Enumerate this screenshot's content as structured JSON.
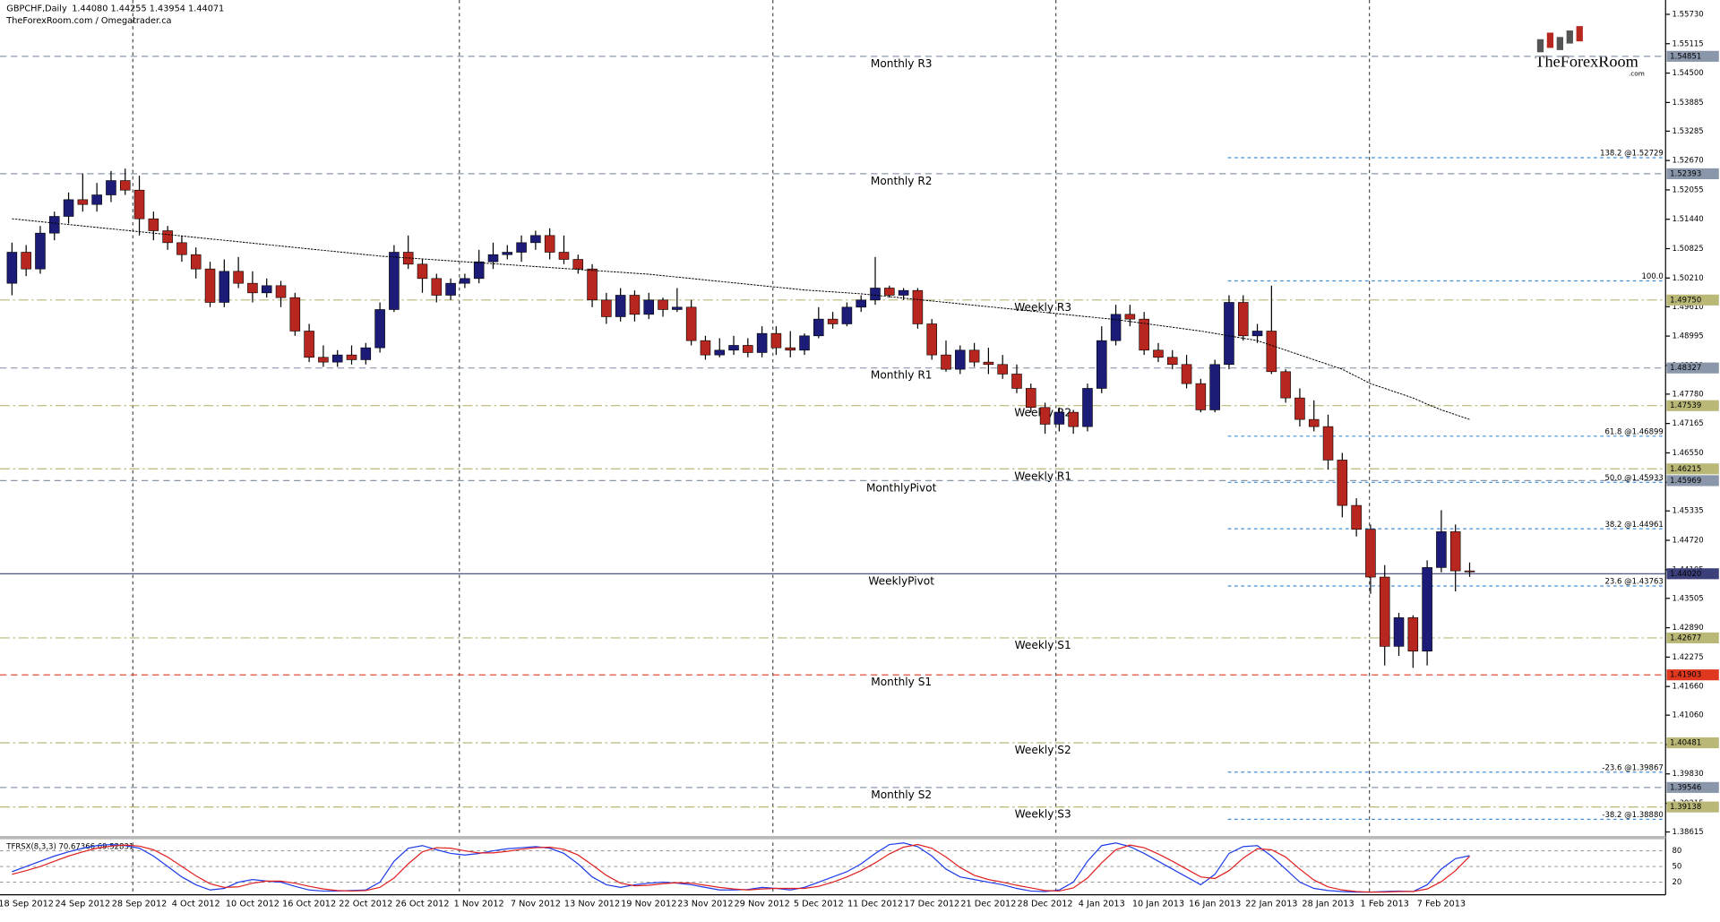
{
  "chart_data": {
    "type": "candlestick",
    "title": "GBPCHF,Daily",
    "subtitle": "1.44080 1.44255 1.43954 1.44071",
    "credit": "TheForexRoom.com / Omegatrader.ca",
    "logo": {
      "name": "TheForexRoom",
      "sub": ".com"
    },
    "up_color": "#1c1c78",
    "down_color": "#b8271f",
    "categories": [
      null,
      "18 Sep 2012",
      null,
      null,
      null,
      "24 Sep 2012",
      null,
      null,
      null,
      "28 Sep 2012",
      null,
      null,
      null,
      "4 Oct 2012",
      null,
      null,
      null,
      "10 Oct 2012",
      null,
      null,
      null,
      "16 Oct 2012",
      null,
      null,
      null,
      "22 Oct 2012",
      null,
      null,
      null,
      "26 Oct 2012",
      null,
      null,
      null,
      "1 Nov 2012",
      null,
      null,
      null,
      "7 Nov 2012",
      null,
      null,
      null,
      "13 Nov 2012",
      null,
      null,
      null,
      "19 Nov 2012",
      null,
      null,
      null,
      "23 Nov 2012",
      null,
      null,
      null,
      "29 Nov 2012",
      null,
      null,
      null,
      "5 Dec 2012",
      null,
      null,
      null,
      "11 Dec 2012",
      null,
      null,
      null,
      "17 Dec 2012",
      null,
      null,
      null,
      "21 Dec 2012",
      null,
      null,
      null,
      "28 Dec 2012",
      null,
      null,
      null,
      "4 Jan 2013",
      null,
      null,
      null,
      "10 Jan 2013",
      null,
      null,
      null,
      "16 Jan 2013",
      null,
      null,
      null,
      "22 Jan 2013",
      null,
      null,
      null,
      "28 Jan 2013",
      null,
      null,
      null,
      "1 Feb 2013",
      null,
      null,
      null,
      "7 Feb 2013",
      null,
      null
    ],
    "open": [
      1.501,
      1.5075,
      1.504,
      1.5115,
      1.515,
      1.5185,
      1.5175,
      1.5195,
      1.5225,
      1.5205,
      1.5145,
      1.512,
      1.5095,
      1.507,
      1.504,
      1.497,
      1.5035,
      1.501,
      1.499,
      1.5005,
      1.498,
      1.491,
      1.4855,
      1.4845,
      1.486,
      1.485,
      1.4875,
      1.4955,
      1.5075,
      1.505,
      1.502,
      1.4985,
      1.501,
      1.502,
      1.5055,
      1.507,
      1.5075,
      1.5095,
      1.511,
      1.5075,
      1.506,
      1.504,
      1.4975,
      1.494,
      1.4985,
      1.4945,
      1.4975,
      1.4955,
      1.496,
      1.489,
      1.486,
      1.487,
      1.488,
      1.4865,
      1.4905,
      1.4875,
      1.487,
      1.49,
      1.4935,
      1.4925,
      1.496,
      1.4975,
      1.5,
      1.4985,
      1.4995,
      1.4925,
      1.486,
      1.483,
      1.487,
      1.4845,
      1.484,
      1.482,
      1.479,
      1.475,
      1.4715,
      1.474,
      1.471,
      1.479,
      1.489,
      1.4945,
      1.4935,
      1.487,
      1.4855,
      1.484,
      1.48,
      1.4745,
      1.484,
      1.497,
      1.49,
      1.491,
      1.4825,
      1.477,
      1.4725,
      1.471,
      1.464,
      1.4545,
      1.4495,
      1.4395,
      1.425,
      1.431,
      1.424,
      1.4415,
      1.449,
      1.4408
    ],
    "high": [
      1.5095,
      1.509,
      1.513,
      1.516,
      1.52,
      1.524,
      1.522,
      1.5245,
      1.525,
      1.5235,
      1.516,
      1.513,
      1.511,
      1.5085,
      1.5055,
      1.506,
      1.5065,
      1.5035,
      1.502,
      1.5015,
      1.499,
      1.4925,
      1.488,
      1.487,
      1.488,
      1.4885,
      1.497,
      1.509,
      1.511,
      1.506,
      1.503,
      1.502,
      1.503,
      1.508,
      1.5095,
      1.509,
      1.511,
      1.512,
      1.5125,
      1.511,
      1.507,
      1.505,
      1.499,
      1.5,
      1.4995,
      1.499,
      1.498,
      1.5,
      1.4975,
      1.49,
      1.4895,
      1.49,
      1.4895,
      1.492,
      1.492,
      1.491,
      1.4905,
      1.496,
      1.495,
      1.497,
      1.4985,
      1.5065,
      1.5005,
      1.5,
      1.5,
      1.4935,
      1.489,
      1.488,
      1.4885,
      1.4875,
      1.486,
      1.484,
      1.48,
      1.476,
      1.475,
      1.4745,
      1.48,
      1.492,
      1.4965,
      1.4965,
      1.495,
      1.4885,
      1.487,
      1.486,
      1.481,
      1.485,
      1.4985,
      1.4985,
      1.4925,
      1.5005,
      1.483,
      1.479,
      1.4765,
      1.4735,
      1.4655,
      1.456,
      1.4505,
      1.442,
      1.432,
      1.4315,
      1.443,
      1.4535,
      1.4505,
      1.44255
    ],
    "low": [
      1.4985,
      1.5025,
      1.503,
      1.51,
      1.5135,
      1.516,
      1.516,
      1.518,
      1.5195,
      1.511,
      1.51,
      1.508,
      1.5055,
      1.502,
      1.496,
      1.496,
      1.5,
      1.497,
      1.498,
      1.496,
      1.49,
      1.4845,
      1.4835,
      1.4835,
      1.484,
      1.484,
      1.4865,
      1.495,
      1.504,
      1.499,
      1.497,
      1.4975,
      1.5,
      1.501,
      1.504,
      1.506,
      1.5055,
      1.508,
      1.506,
      1.505,
      1.503,
      1.496,
      1.4925,
      1.493,
      1.493,
      1.4935,
      1.494,
      1.495,
      1.488,
      1.485,
      1.4855,
      1.486,
      1.4855,
      1.4855,
      1.486,
      1.4855,
      1.486,
      1.4895,
      1.4915,
      1.492,
      1.495,
      1.4965,
      1.498,
      1.4975,
      1.4915,
      1.485,
      1.4825,
      1.482,
      1.4835,
      1.482,
      1.481,
      1.478,
      1.474,
      1.4695,
      1.47,
      1.4695,
      1.47,
      1.478,
      1.488,
      1.492,
      1.486,
      1.4845,
      1.483,
      1.479,
      1.474,
      1.474,
      1.483,
      1.489,
      1.4885,
      1.482,
      1.476,
      1.471,
      1.47,
      1.462,
      1.452,
      1.448,
      1.436,
      1.421,
      1.423,
      1.4205,
      1.421,
      1.4405,
      1.4365,
      1.43954
    ],
    "close": [
      1.5075,
      1.504,
      1.5115,
      1.515,
      1.5185,
      1.5175,
      1.5195,
      1.5225,
      1.5205,
      1.5145,
      1.512,
      1.5095,
      1.507,
      1.504,
      1.497,
      1.5035,
      1.501,
      1.499,
      1.5005,
      1.498,
      1.491,
      1.4855,
      1.4845,
      1.486,
      1.485,
      1.4875,
      1.4955,
      1.5075,
      1.505,
      1.502,
      1.4985,
      1.501,
      1.502,
      1.5055,
      1.507,
      1.5075,
      1.5095,
      1.511,
      1.5075,
      1.506,
      1.504,
      1.4975,
      1.494,
      1.4985,
      1.4945,
      1.4975,
      1.4955,
      1.496,
      1.489,
      1.486,
      1.487,
      1.488,
      1.4865,
      1.4905,
      1.4875,
      1.487,
      1.49,
      1.4935,
      1.4925,
      1.496,
      1.4975,
      1.5,
      1.4985,
      1.4995,
      1.4925,
      1.486,
      1.483,
      1.487,
      1.4845,
      1.484,
      1.482,
      1.479,
      1.475,
      1.4715,
      1.474,
      1.471,
      1.479,
      1.489,
      1.4945,
      1.4935,
      1.487,
      1.4855,
      1.484,
      1.48,
      1.4745,
      1.484,
      1.497,
      1.49,
      1.491,
      1.4825,
      1.477,
      1.4725,
      1.471,
      1.464,
      1.4545,
      1.4495,
      1.4395,
      1.425,
      1.431,
      1.424,
      1.4415,
      1.449,
      1.4408,
      1.44071
    ],
    "ma": {
      "color": "#000000",
      "values": [
        1.5145,
        1.5142,
        1.5139,
        1.5136,
        1.5133,
        1.513,
        1.5127,
        1.5124,
        1.5121,
        1.5118,
        1.5115,
        1.5112,
        1.5109,
        1.5106,
        1.5103,
        1.51,
        1.5097,
        1.5094,
        1.5091,
        1.5088,
        1.5085,
        1.5082,
        1.5079,
        1.5076,
        1.5073,
        1.507,
        1.5067,
        1.5065,
        1.5063,
        1.5061,
        1.5059,
        1.5057,
        1.5055,
        1.5053,
        1.5051,
        1.5049,
        1.5047,
        1.5045,
        1.5043,
        1.5041,
        1.5039,
        1.5037,
        1.5035,
        1.5033,
        1.5031,
        1.5029,
        1.5026,
        1.5023,
        1.502,
        1.5017,
        1.5014,
        1.5011,
        1.5008,
        1.5005,
        1.5002,
        1.4999,
        1.4996,
        1.4994,
        1.4992,
        1.499,
        1.4988,
        1.4985,
        1.4982,
        1.4979,
        1.4976,
        1.4973,
        1.497,
        1.4967,
        1.4964,
        1.4961,
        1.4958,
        1.4955,
        1.4952,
        1.4949,
        1.4946,
        1.4943,
        1.494,
        1.4937,
        1.4934,
        1.493,
        1.4926,
        1.4922,
        1.4918,
        1.4914,
        1.491,
        1.4905,
        1.49,
        1.4895,
        1.489,
        1.488,
        1.487,
        1.486,
        1.485,
        1.484,
        1.483,
        1.4815,
        1.48,
        1.479,
        1.478,
        1.477,
        1.4757,
        1.4745,
        1.4735,
        1.4725
      ]
    },
    "ylim": [
      1.3853,
      1.5603
    ],
    "yticks": [
      {
        "value": 1.5573,
        "label": "1.55730"
      },
      {
        "value": 1.55115,
        "label": "1.55115"
      },
      {
        "value": 1.545,
        "label": "1.54500"
      },
      {
        "value": 1.53885,
        "label": "1.53885"
      },
      {
        "value": 1.53285,
        "label": "1.53285"
      },
      {
        "value": 1.5267,
        "label": "1.52670"
      },
      {
        "value": 1.52055,
        "label": "1.52055"
      },
      {
        "value": 1.5144,
        "label": "1.51440"
      },
      {
        "value": 1.50825,
        "label": "1.50825"
      },
      {
        "value": 1.5021,
        "label": "1.50210"
      },
      {
        "value": 1.4961,
        "label": "1.49610"
      },
      {
        "value": 1.48995,
        "label": "1.48995"
      },
      {
        "value": 1.4838,
        "label": "1.48380"
      },
      {
        "value": 1.4778,
        "label": "1.47780"
      },
      {
        "value": 1.47165,
        "label": "1.47165"
      },
      {
        "value": 1.4655,
        "label": "1.46550"
      },
      {
        "value": 1.45935,
        "label": "1.45935"
      },
      {
        "value": 1.45335,
        "label": "1.45335"
      },
      {
        "value": 1.4472,
        "label": "1.44720"
      },
      {
        "value": 1.44105,
        "label": "1.44105"
      },
      {
        "value": 1.43505,
        "label": "1.43505"
      },
      {
        "value": 1.4289,
        "label": "1.42890"
      },
      {
        "value": 1.42275,
        "label": "1.42275"
      },
      {
        "value": 1.4166,
        "label": "1.41660"
      },
      {
        "value": 1.4106,
        "label": "1.41060"
      },
      {
        "value": 1.40445,
        "label": "1.40445"
      },
      {
        "value": 1.3983,
        "label": "1.39830"
      },
      {
        "value": 1.39215,
        "label": "1.39215"
      },
      {
        "value": 1.38615,
        "label": "1.38615"
      }
    ],
    "levels": [
      {
        "label": "Monthly R3",
        "value": 1.54851,
        "tag": "1.54851",
        "color": "#8a97ab",
        "style": "dashed"
      },
      {
        "label": "Monthly R2",
        "value": 1.52393,
        "tag": "1.52393",
        "color": "#8a97ab",
        "style": "dashed"
      },
      {
        "label": "Weekly R3",
        "value": 1.4975,
        "tag": "1.49750",
        "color": "#b9b877",
        "style": "dashdot"
      },
      {
        "label": "Monthly R1",
        "value": 1.48327,
        "tag": "1.48327",
        "color": "#8a97ab",
        "style": "dashed"
      },
      {
        "label": "Weekly R2",
        "value": 1.47539,
        "tag": "1.47539",
        "color": "#b9b877",
        "style": "dashdot"
      },
      {
        "label": "Weekly R1",
        "value": 1.46215,
        "tag": "1.46215",
        "color": "#b9b877",
        "style": "dashdot"
      },
      {
        "label": "MonthlyPivot",
        "value": 1.45969,
        "tag": "1.45969",
        "color": "#8a97ab",
        "style": "dashed"
      },
      {
        "label": "WeeklyPivot",
        "value": 1.4402,
        "tag": "1.44020",
        "color": "#3b3f7a",
        "style": "solid"
      },
      {
        "label": "Weekly S1",
        "value": 1.42677,
        "tag": "1.42677",
        "color": "#b9b877",
        "style": "dashdot"
      },
      {
        "label": "Monthly S1",
        "value": 1.41903,
        "tag": "1.41903",
        "color": "#e0381f",
        "style": "dashed"
      },
      {
        "label": "Weekly S2",
        "value": 1.40481,
        "tag": "1.40481",
        "color": "#b9b877",
        "style": "dashdot"
      },
      {
        "label": "Monthly S2",
        "value": 1.39546,
        "tag": "1.39546",
        "color": "#8a97ab",
        "style": "dashed"
      },
      {
        "label": "Weekly S3",
        "value": 1.39138,
        "tag": "1.39138",
        "color": "#b9b877",
        "style": "dashdot"
      }
    ],
    "fib_color": "#3d8fdc",
    "fib": [
      {
        "label": "138.2 @1.52729",
        "value": 1.52729
      },
      {
        "label": "100.0",
        "value": 1.5015
      },
      {
        "label": "61.8 @1.46899",
        "value": 1.46899
      },
      {
        "label": "50.0 @1.45933",
        "value": 1.45933
      },
      {
        "label": "38.2 @1.44961",
        "value": 1.44961
      },
      {
        "label": "23.6 @1.43763",
        "value": 1.43763
      },
      {
        "label": "-23.6 @1.39867",
        "value": 1.39867
      },
      {
        "label": "-38.2 @1.38880",
        "value": 1.3888
      }
    ],
    "oscillator": {
      "title": "TFRSX(8,3,3) 70.67366 69.52831",
      "ylim": [
        0,
        100
      ],
      "yticks": [
        20,
        50,
        80
      ],
      "series": [
        {
          "color": "#1d3ce8",
          "values": [
            40,
            50,
            60,
            70,
            78,
            85,
            90,
            92,
            90,
            85,
            70,
            50,
            30,
            15,
            5,
            8,
            20,
            25,
            22,
            20,
            12,
            5,
            3,
            3,
            4,
            5,
            20,
            60,
            85,
            90,
            82,
            75,
            72,
            75,
            80,
            84,
            86,
            88,
            85,
            75,
            55,
            30,
            15,
            10,
            15,
            18,
            20,
            18,
            15,
            10,
            5,
            5,
            6,
            10,
            8,
            5,
            10,
            20,
            30,
            40,
            55,
            75,
            92,
            95,
            88,
            70,
            45,
            30,
            25,
            20,
            15,
            8,
            3,
            2,
            5,
            20,
            60,
            90,
            95,
            88,
            75,
            60,
            45,
            30,
            15,
            35,
            75,
            88,
            90,
            70,
            45,
            20,
            8,
            4,
            2,
            1,
            1,
            2,
            3,
            2,
            15,
            45,
            65,
            70.67366
          ]
        },
        {
          "color": "#e02020",
          "values": [
            35,
            42,
            50,
            60,
            70,
            78,
            85,
            89,
            91,
            89,
            82,
            68,
            50,
            32,
            17,
            10,
            11,
            18,
            22,
            22,
            18,
            12,
            7,
            4,
            3,
            4,
            10,
            28,
            55,
            78,
            86,
            85,
            80,
            76,
            76,
            79,
            83,
            86,
            87,
            83,
            72,
            53,
            33,
            18,
            13,
            14,
            17,
            19,
            18,
            14,
            10,
            7,
            5,
            7,
            8,
            8,
            8,
            12,
            20,
            30,
            42,
            57,
            74,
            87,
            92,
            85,
            68,
            48,
            33,
            25,
            20,
            14,
            9,
            4,
            3,
            9,
            28,
            57,
            82,
            91,
            86,
            74,
            60,
            45,
            30,
            27,
            42,
            66,
            84,
            82,
            68,
            45,
            24,
            11,
            5,
            2,
            1,
            1,
            2,
            2,
            7,
            21,
            42,
            69.52831
          ]
        }
      ]
    }
  }
}
